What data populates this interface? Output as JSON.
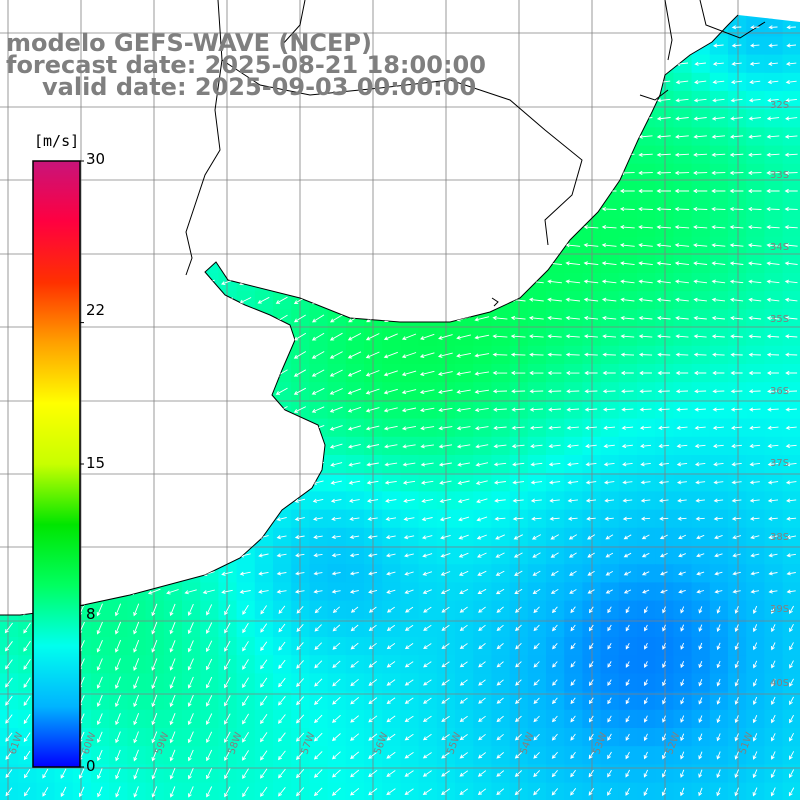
{
  "title": {
    "model": "modelo GEFS-WAVE (NCEP)",
    "forecast": "forecast date: 2025-08-21 18:00:00",
    "valid": "valid date: 2025-09-03 00:00:00"
  },
  "colorbar": {
    "unit": "[m/s]",
    "min": 0,
    "max": 30,
    "tick_labels": [
      "30",
      "22",
      "15",
      "8",
      "0"
    ],
    "tick_values": [
      30,
      22,
      15,
      8,
      0
    ],
    "colors": [
      "#0000ff",
      "#00b4ff",
      "#00ffee",
      "#00ff60",
      "#00e600",
      "#c8ff00",
      "#ffff00",
      "#ffa000",
      "#ff3000",
      "#ff0040",
      "#c8147a"
    ]
  },
  "map": {
    "lat_labels": [
      "32S",
      "33S",
      "34S",
      "35S",
      "36S",
      "37S",
      "38S",
      "39S",
      "40S"
    ],
    "lon_labels": [
      "61W",
      "60W",
      "59W",
      "58W",
      "57W",
      "56W",
      "55W",
      "54W",
      "53W",
      "52W",
      "51W"
    ],
    "land_color": "#ffffff",
    "grid_color": "#808080",
    "coast_color": "#000000",
    "arrow_color": "#ffffff"
  }
}
